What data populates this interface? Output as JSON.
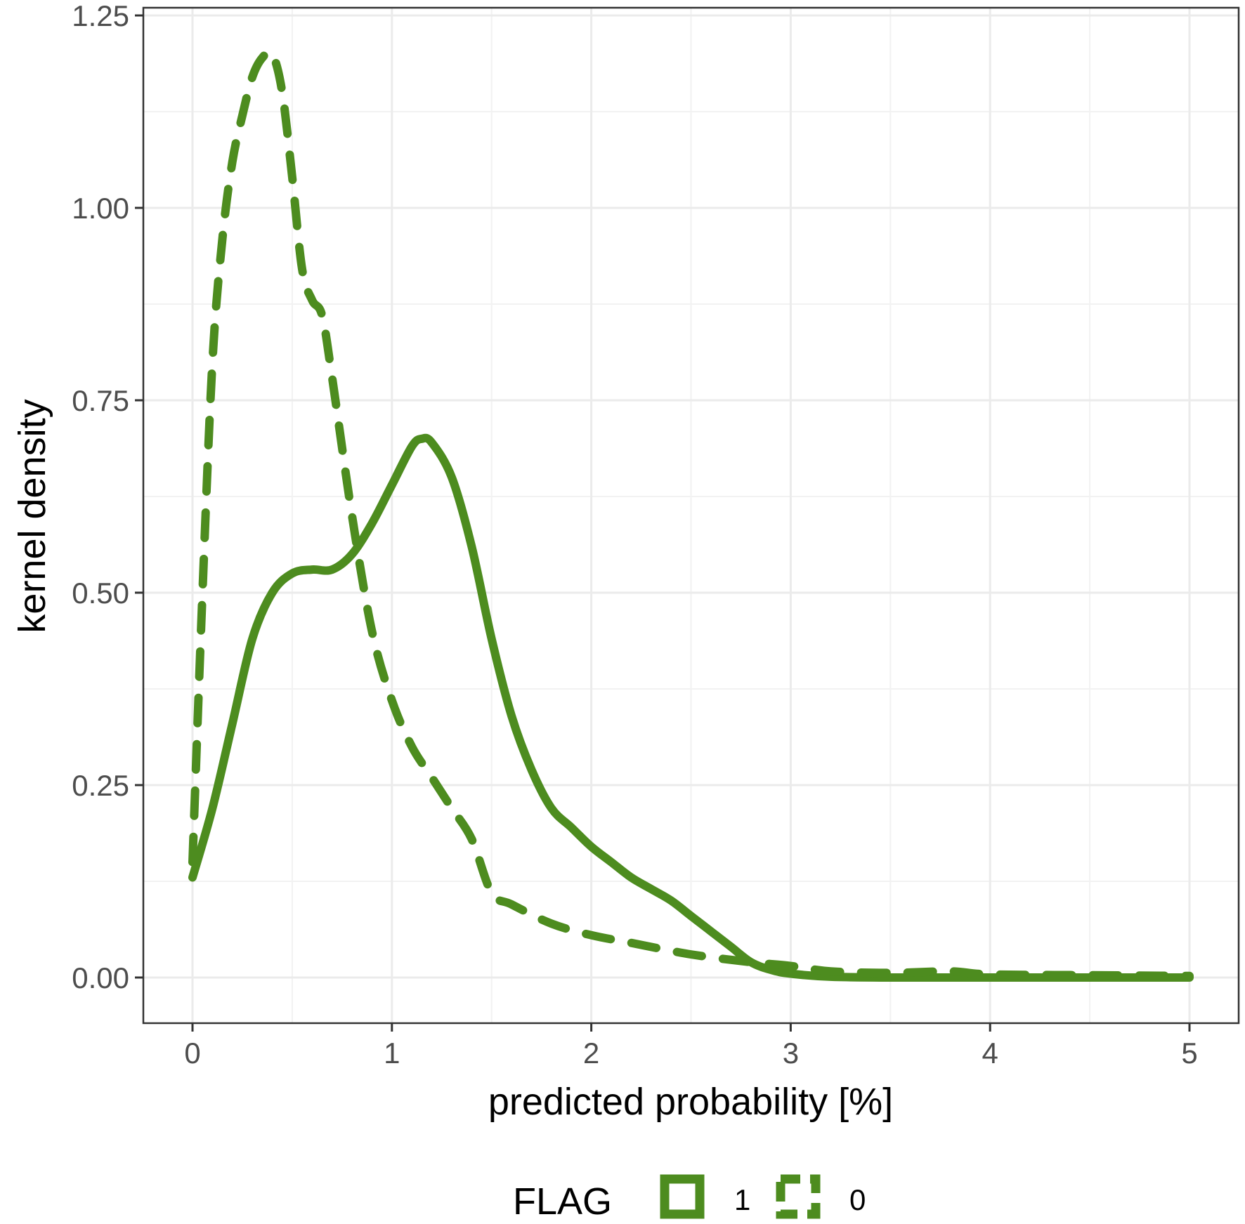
{
  "chart_data": {
    "type": "line",
    "title": "",
    "xlabel": "predicted probability [%]",
    "ylabel": "kernel density",
    "xlim": [
      -0.25,
      5.25
    ],
    "ylim": [
      -0.06,
      1.26
    ],
    "x_ticks": [
      0,
      1,
      2,
      3,
      4,
      5
    ],
    "x_tick_labels": [
      "0",
      "1",
      "2",
      "3",
      "4",
      "5"
    ],
    "y_ticks": [
      0,
      0.25,
      0.5,
      0.75,
      1.0,
      1.25
    ],
    "y_tick_labels": [
      "0.00",
      "0.25",
      "0.50",
      "0.75",
      "1.00",
      "1.25"
    ],
    "grid": true,
    "legend_position": "bottom",
    "legend_title": "FLAG",
    "series": [
      {
        "name": "1",
        "linetype": "solid",
        "color": "#4d8c1f",
        "x": [
          0,
          0.1,
          0.2,
          0.3,
          0.4,
          0.5,
          0.6,
          0.7,
          0.8,
          0.9,
          1.0,
          1.1,
          1.15,
          1.2,
          1.3,
          1.4,
          1.5,
          1.6,
          1.7,
          1.8,
          1.9,
          2.0,
          2.1,
          2.2,
          2.3,
          2.4,
          2.5,
          2.6,
          2.7,
          2.8,
          2.9,
          3.0,
          3.2,
          3.5,
          4.0,
          4.5,
          5.0
        ],
        "y": [
          0.13,
          0.22,
          0.33,
          0.44,
          0.5,
          0.525,
          0.53,
          0.53,
          0.55,
          0.59,
          0.64,
          0.69,
          0.7,
          0.695,
          0.65,
          0.56,
          0.44,
          0.34,
          0.27,
          0.22,
          0.195,
          0.17,
          0.15,
          0.13,
          0.115,
          0.1,
          0.08,
          0.06,
          0.04,
          0.02,
          0.01,
          0.005,
          0.001,
          0.0,
          0.0,
          0.0,
          0.0
        ]
      },
      {
        "name": "0",
        "linetype": "dashed",
        "color": "#4d8c1f",
        "x": [
          0,
          0.05,
          0.1,
          0.15,
          0.2,
          0.25,
          0.3,
          0.35,
          0.4,
          0.45,
          0.5,
          0.55,
          0.6,
          0.65,
          0.7,
          0.8,
          0.9,
          1.0,
          1.1,
          1.2,
          1.3,
          1.4,
          1.5,
          1.6,
          1.8,
          2.0,
          2.2,
          2.5,
          2.8,
          3.0,
          3.2,
          3.5,
          3.8,
          4.0,
          4.5,
          5.0
        ],
        "y": [
          0.15,
          0.5,
          0.8,
          0.96,
          1.06,
          1.12,
          1.17,
          1.195,
          1.2,
          1.15,
          1.04,
          0.92,
          0.88,
          0.86,
          0.78,
          0.6,
          0.45,
          0.36,
          0.3,
          0.26,
          0.22,
          0.18,
          0.11,
          0.095,
          0.07,
          0.055,
          0.045,
          0.03,
          0.02,
          0.015,
          0.008,
          0.006,
          0.008,
          0.004,
          0.003,
          0.002
        ]
      }
    ]
  },
  "colors": {
    "line": "#4d8c1f",
    "grid_major": "#ebebeb",
    "grid_minor": "#f2f2f2",
    "panel_border": "#333333",
    "tick_text": "#4d4d4d"
  },
  "legend": {
    "title": "FLAG",
    "items": [
      {
        "label": "1",
        "linetype": "solid"
      },
      {
        "label": "0",
        "linetype": "dashed"
      }
    ]
  }
}
